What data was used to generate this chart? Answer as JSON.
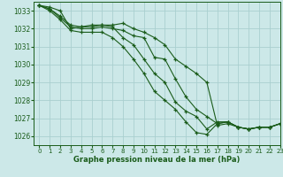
{
  "title": "Graphe pression niveau de la mer (hPa)",
  "bg_color": "#cce8e8",
  "grid_color": "#aacfcf",
  "line_color": "#1a5c1a",
  "xlim": [
    -0.5,
    23
  ],
  "ylim": [
    1025.5,
    1033.5
  ],
  "yticks": [
    1026,
    1027,
    1028,
    1029,
    1030,
    1031,
    1032,
    1033
  ],
  "xticks": [
    0,
    1,
    2,
    3,
    4,
    5,
    6,
    7,
    8,
    9,
    10,
    11,
    12,
    13,
    14,
    15,
    16,
    17,
    18,
    19,
    20,
    21,
    22,
    23
  ],
  "series": [
    [
      1033.3,
      1033.2,
      1033.0,
      1032.0,
      1032.1,
      1032.2,
      1032.2,
      1032.2,
      1032.3,
      1032.0,
      1031.8,
      1031.5,
      1031.1,
      1030.3,
      1029.9,
      1029.5,
      1029.0,
      1026.6,
      1026.7,
      1026.5,
      1026.4,
      1026.5,
      1026.5,
      1026.7
    ],
    [
      1033.3,
      1033.1,
      1032.6,
      1032.1,
      1032.0,
      1032.0,
      1032.1,
      1032.0,
      1031.9,
      1031.6,
      1031.5,
      1030.4,
      1030.3,
      1029.2,
      1028.2,
      1027.5,
      1027.1,
      1026.7,
      1026.8,
      1026.5,
      1026.4,
      1026.5,
      1026.5,
      1026.7
    ],
    [
      1033.3,
      1033.1,
      1032.7,
      1032.2,
      1032.1,
      1032.1,
      1032.2,
      1032.1,
      1031.5,
      1031.1,
      1030.3,
      1029.5,
      1029.0,
      1027.9,
      1027.4,
      1027.1,
      1026.4,
      1026.8,
      1026.8,
      1026.5,
      1026.4,
      1026.5,
      1026.5,
      1026.7
    ],
    [
      1033.3,
      1033.0,
      1032.5,
      1031.9,
      1031.8,
      1031.8,
      1031.8,
      1031.5,
      1031.0,
      1030.3,
      1029.5,
      1028.5,
      1028.0,
      1027.5,
      1026.8,
      1026.2,
      1026.1,
      1026.7,
      1026.8,
      1026.5,
      1026.4,
      1026.5,
      1026.5,
      1026.7
    ]
  ]
}
